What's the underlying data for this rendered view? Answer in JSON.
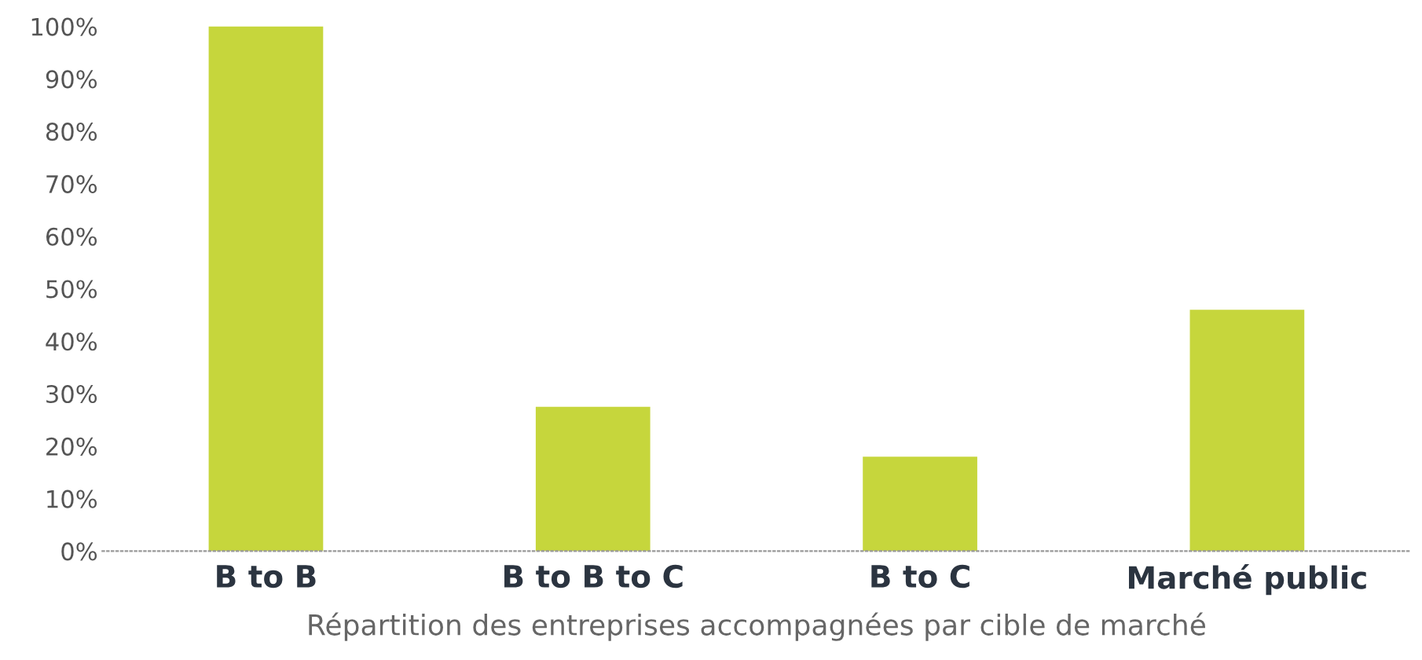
{
  "chart_data": {
    "type": "bar",
    "xlabel": "Répartition des entreprises accompagnées par cible de marché",
    "categories": [
      "B to B",
      "B to B to C",
      "B to C",
      "Marché public"
    ],
    "values": [
      100,
      27.5,
      18,
      46
    ],
    "color": "#c6d63c",
    "ylim": [
      0,
      100
    ],
    "yticks": [
      {
        "value": 0,
        "label": "0%"
      },
      {
        "value": 10,
        "label": "10%"
      },
      {
        "value": 20,
        "label": "20%"
      },
      {
        "value": 30,
        "label": "30%"
      },
      {
        "value": 40,
        "label": "40%"
      },
      {
        "value": 50,
        "label": "50%"
      },
      {
        "value": 60,
        "label": "60%"
      },
      {
        "value": 70,
        "label": "70%"
      },
      {
        "value": 80,
        "label": "80%"
      },
      {
        "value": 90,
        "label": "90%"
      },
      {
        "value": 100,
        "label": "100%"
      }
    ],
    "grid": false,
    "legend": false
  }
}
